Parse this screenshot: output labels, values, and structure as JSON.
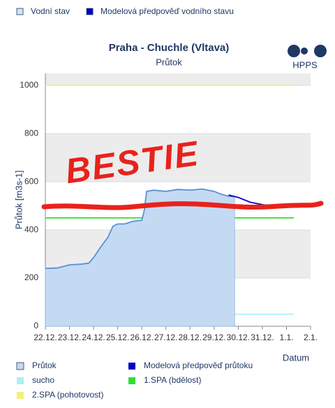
{
  "chart_data": {
    "type": "area",
    "title": "Praha - Chuchle (Vltava)",
    "subtitle": "Průtok",
    "logo": "HPPS",
    "annotation": "BESTIE",
    "y_label": "Průtok [m3s-1]",
    "x_label": "Datum",
    "top_legend": [
      {
        "name": "Vodní stav",
        "color": "#cfe3f7"
      },
      {
        "name": "Modelová předpověď vodního stavu",
        "color": "#0000cc"
      }
    ],
    "xlim": [
      0,
      11
    ],
    "xticks": [
      {
        "value": 0,
        "label": "22.12."
      },
      {
        "value": 1,
        "label": "23.12."
      },
      {
        "value": 2,
        "label": "24.12."
      },
      {
        "value": 3,
        "label": "25.12."
      },
      {
        "value": 4,
        "label": "26.12."
      },
      {
        "value": 5,
        "label": "27.12."
      },
      {
        "value": 6,
        "label": "28.12."
      },
      {
        "value": 7,
        "label": "29.12."
      },
      {
        "value": 8,
        "label": "30.12."
      },
      {
        "value": 9,
        "label": "31.12."
      },
      {
        "value": 10,
        "label": "1.1."
      },
      {
        "value": 11,
        "label": "2.1."
      }
    ],
    "ylim": [
      0,
      1050
    ],
    "yticks": [
      0,
      200,
      400,
      600,
      800,
      1000
    ],
    "grid": true,
    "series": [
      {
        "name": "Průtok",
        "color": "#5b8fd6",
        "fill": "#c4daf3",
        "kind": "area",
        "x": [
          0,
          0.5,
          1,
          1.5,
          1.8,
          2,
          2.3,
          2.6,
          2.8,
          3,
          3.3,
          3.6,
          4,
          4.1,
          4.2,
          4.5,
          5,
          5.5,
          6,
          6.5,
          7,
          7.3,
          7.6,
          7.85
        ],
        "values": [
          240,
          242,
          255,
          258,
          262,
          285,
          330,
          370,
          415,
          425,
          425,
          435,
          440,
          480,
          560,
          565,
          560,
          568,
          565,
          570,
          560,
          548,
          540,
          538
        ]
      },
      {
        "name": "Modelová předpověď průtoku",
        "color": "#0000cc",
        "kind": "line",
        "x": [
          7.6,
          8,
          8.5,
          9,
          9.3
        ],
        "values": [
          545,
          535,
          515,
          505,
          500
        ]
      },
      {
        "name": "sucho",
        "color": "#aaf0f5",
        "kind": "line",
        "x": [
          0,
          10.3
        ],
        "values": [
          50,
          50
        ]
      },
      {
        "name": "1.SPA (bdělost)",
        "color": "#33dd33",
        "kind": "line",
        "x": [
          0,
          10.3
        ],
        "values": [
          450,
          450
        ]
      },
      {
        "name": "2.SPA (pohotovost)",
        "color": "#f5f07a",
        "kind": "line",
        "x": [
          0,
          10.3
        ],
        "values": [
          1000,
          1000
        ]
      }
    ]
  }
}
